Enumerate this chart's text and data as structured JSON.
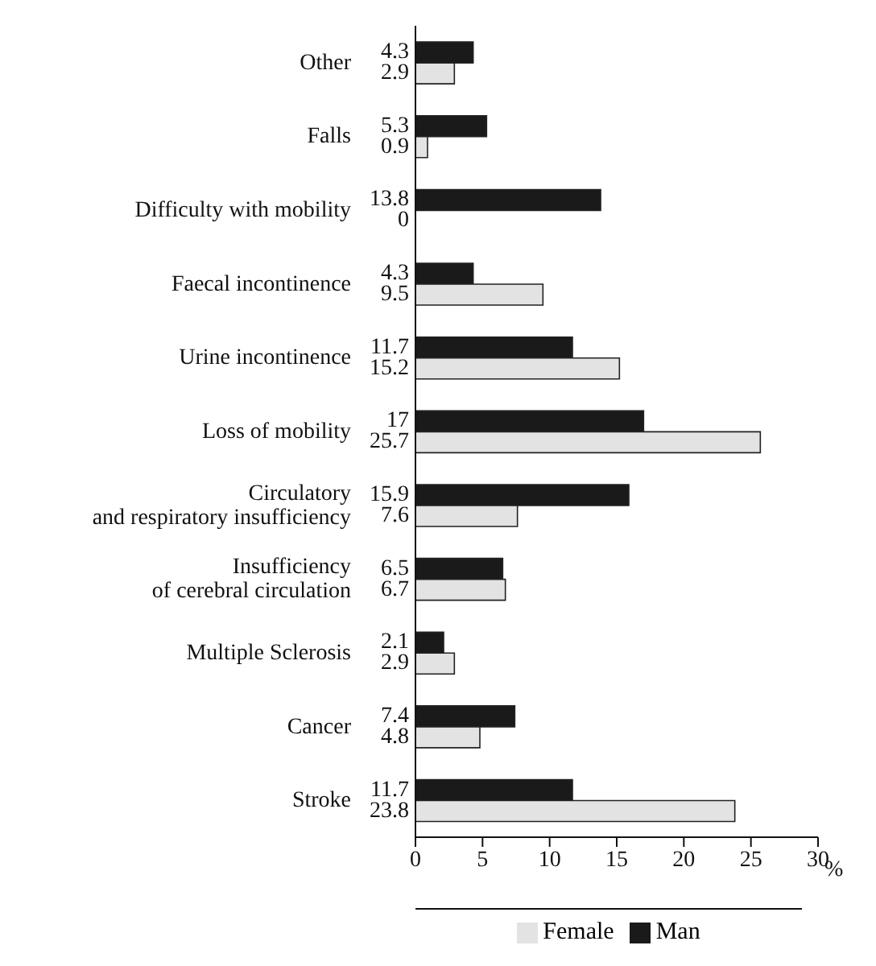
{
  "chart_data": {
    "type": "bar",
    "orientation": "horizontal",
    "categories": [
      "Other",
      "Falls",
      "Difficulty with mobility",
      "Faecal incontinence",
      "Urine incontinence",
      "Loss of mobility",
      "Circulatory and respiratory insufficiency",
      "Insufficiency of cerebral circulation",
      "Multiple Sclerosis",
      "Cancer",
      "Stroke"
    ],
    "series": [
      {
        "name": "Man",
        "color": "#1a1a1a",
        "values": [
          4.3,
          5.3,
          13.8,
          4.3,
          11.7,
          17,
          15.9,
          6.5,
          2.1,
          7.4,
          11.7
        ]
      },
      {
        "name": "Female",
        "color": "#e3e3e3",
        "values": [
          2.9,
          0.9,
          0,
          9.5,
          15.2,
          25.7,
          7.6,
          6.7,
          2.9,
          4.8,
          23.8
        ]
      }
    ],
    "xlim": [
      0,
      30
    ],
    "xticks": [
      0,
      5,
      10,
      15,
      20,
      25,
      30
    ],
    "xlabel": "%",
    "data_labels": true,
    "grid": false,
    "legend": "bottom"
  }
}
